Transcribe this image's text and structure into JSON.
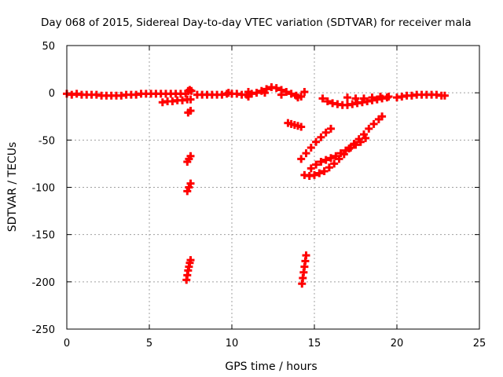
{
  "chart_data": {
    "type": "scatter",
    "title": "Day 068 of 2015, Sidereal Day-to-day VTEC variation (SDTVAR) for receiver mala",
    "xlabel": "GPS time / hours",
    "ylabel": "SDTVAR / TECUs",
    "xlim": [
      0,
      25
    ],
    "ylim": [
      -250,
      50
    ],
    "x_ticks": [
      0,
      5,
      10,
      15,
      20,
      25
    ],
    "y_ticks": [
      50,
      0,
      -50,
      -100,
      -150,
      -200,
      -250
    ],
    "grid": true,
    "marker": "plus",
    "color": "#ff0000",
    "series": [
      {
        "values": [
          {
            "x": 0.0,
            "y": -1
          },
          {
            "x": 0.3,
            "y": -2
          },
          {
            "x": 0.6,
            "y": -1
          },
          {
            "x": 0.9,
            "y": -2
          },
          {
            "x": 1.2,
            "y": -2
          },
          {
            "x": 1.5,
            "y": -2
          },
          {
            "x": 1.8,
            "y": -2
          },
          {
            "x": 2.1,
            "y": -3
          },
          {
            "x": 2.4,
            "y": -3
          },
          {
            "x": 2.7,
            "y": -3
          },
          {
            "x": 3.0,
            "y": -3
          },
          {
            "x": 3.3,
            "y": -3
          },
          {
            "x": 3.6,
            "y": -2
          },
          {
            "x": 3.9,
            "y": -2
          },
          {
            "x": 4.2,
            "y": -2
          },
          {
            "x": 4.5,
            "y": -1
          },
          {
            "x": 4.8,
            "y": -1
          },
          {
            "x": 5.1,
            "y": -1
          },
          {
            "x": 5.4,
            "y": -1
          },
          {
            "x": 5.7,
            "y": -1
          },
          {
            "x": 6.0,
            "y": -1
          },
          {
            "x": 6.3,
            "y": -1
          },
          {
            "x": 6.6,
            "y": -1
          },
          {
            "x": 6.9,
            "y": -1
          },
          {
            "x": 7.2,
            "y": -1
          },
          {
            "x": 5.8,
            "y": -10
          },
          {
            "x": 6.1,
            "y": -9
          },
          {
            "x": 6.4,
            "y": -9
          },
          {
            "x": 6.7,
            "y": -8
          },
          {
            "x": 7.0,
            "y": -8
          },
          {
            "x": 7.3,
            "y": -7
          },
          {
            "x": 7.5,
            "y": -7
          },
          {
            "x": 7.35,
            "y": 2
          },
          {
            "x": 7.45,
            "y": 3
          },
          {
            "x": 7.55,
            "y": 2
          },
          {
            "x": 7.35,
            "y": -21
          },
          {
            "x": 7.5,
            "y": -19
          },
          {
            "x": 7.3,
            "y": -73
          },
          {
            "x": 7.4,
            "y": -70
          },
          {
            "x": 7.5,
            "y": -67
          },
          {
            "x": 7.3,
            "y": -104
          },
          {
            "x": 7.4,
            "y": -100
          },
          {
            "x": 7.5,
            "y": -96
          },
          {
            "x": 7.25,
            "y": -198
          },
          {
            "x": 7.3,
            "y": -193
          },
          {
            "x": 7.35,
            "y": -188
          },
          {
            "x": 7.4,
            "y": -184
          },
          {
            "x": 7.45,
            "y": -180
          },
          {
            "x": 7.5,
            "y": -177
          },
          {
            "x": 7.9,
            "y": -2
          },
          {
            "x": 8.2,
            "y": -2
          },
          {
            "x": 8.5,
            "y": -2
          },
          {
            "x": 8.8,
            "y": -2
          },
          {
            "x": 9.1,
            "y": -2
          },
          {
            "x": 9.4,
            "y": -2
          },
          {
            "x": 9.7,
            "y": -1
          },
          {
            "x": 10.0,
            "y": -1
          },
          {
            "x": 10.3,
            "y": -1
          },
          {
            "x": 10.6,
            "y": -2
          },
          {
            "x": 10.9,
            "y": -2
          },
          {
            "x": 11.2,
            "y": -1
          },
          {
            "x": 11.5,
            "y": 0
          },
          {
            "x": 11.8,
            "y": 2
          },
          {
            "x": 12.1,
            "y": 4
          },
          {
            "x": 12.4,
            "y": 6
          },
          {
            "x": 12.7,
            "y": 5
          },
          {
            "x": 13.0,
            "y": 3
          },
          {
            "x": 13.3,
            "y": 1
          },
          {
            "x": 13.6,
            "y": -1
          },
          {
            "x": 13.9,
            "y": -3
          },
          {
            "x": 14.2,
            "y": -4
          },
          {
            "x": 14.4,
            "y": 1
          },
          {
            "x": 9.8,
            "y": 0
          },
          {
            "x": 11.0,
            "y": 1
          },
          {
            "x": 11.0,
            "y": -4
          },
          {
            "x": 12.0,
            "y": 0
          },
          {
            "x": 13.0,
            "y": -2
          },
          {
            "x": 14.0,
            "y": -5
          },
          {
            "x": 13.4,
            "y": -32
          },
          {
            "x": 13.6,
            "y": -33
          },
          {
            "x": 13.8,
            "y": -34
          },
          {
            "x": 14.0,
            "y": -35
          },
          {
            "x": 14.2,
            "y": -36
          },
          {
            "x": 14.25,
            "y": -202
          },
          {
            "x": 14.3,
            "y": -196
          },
          {
            "x": 14.35,
            "y": -190
          },
          {
            "x": 14.4,
            "y": -184
          },
          {
            "x": 14.45,
            "y": -178
          },
          {
            "x": 14.5,
            "y": -172
          },
          {
            "x": 14.2,
            "y": -70
          },
          {
            "x": 14.5,
            "y": -64
          },
          {
            "x": 14.8,
            "y": -58
          },
          {
            "x": 15.1,
            "y": -52
          },
          {
            "x": 15.4,
            "y": -47
          },
          {
            "x": 15.7,
            "y": -42
          },
          {
            "x": 16.0,
            "y": -38
          },
          {
            "x": 14.4,
            "y": -87
          },
          {
            "x": 14.7,
            "y": -88
          },
          {
            "x": 15.0,
            "y": -87
          },
          {
            "x": 15.3,
            "y": -85
          },
          {
            "x": 15.6,
            "y": -83
          },
          {
            "x": 15.9,
            "y": -79
          },
          {
            "x": 16.2,
            "y": -75
          },
          {
            "x": 16.5,
            "y": -70
          },
          {
            "x": 16.8,
            "y": -65
          },
          {
            "x": 17.1,
            "y": -59
          },
          {
            "x": 17.4,
            "y": -54
          },
          {
            "x": 17.7,
            "y": -49
          },
          {
            "x": 18.0,
            "y": -44
          },
          {
            "x": 18.3,
            "y": -38
          },
          {
            "x": 18.6,
            "y": -33
          },
          {
            "x": 18.9,
            "y": -28
          },
          {
            "x": 19.1,
            "y": -25
          },
          {
            "x": 14.8,
            "y": -80
          },
          {
            "x": 15.1,
            "y": -76
          },
          {
            "x": 15.4,
            "y": -73
          },
          {
            "x": 15.7,
            "y": -71
          },
          {
            "x": 16.0,
            "y": -69
          },
          {
            "x": 16.3,
            "y": -67
          },
          {
            "x": 16.6,
            "y": -64
          },
          {
            "x": 16.9,
            "y": -61
          },
          {
            "x": 17.2,
            "y": -58
          },
          {
            "x": 17.5,
            "y": -55
          },
          {
            "x": 17.8,
            "y": -52
          },
          {
            "x": 18.1,
            "y": -48
          },
          {
            "x": 15.5,
            "y": -6
          },
          {
            "x": 15.8,
            "y": -9
          },
          {
            "x": 16.1,
            "y": -11
          },
          {
            "x": 16.4,
            "y": -12
          },
          {
            "x": 16.7,
            "y": -13
          },
          {
            "x": 17.0,
            "y": -13
          },
          {
            "x": 17.3,
            "y": -12
          },
          {
            "x": 17.6,
            "y": -11
          },
          {
            "x": 17.9,
            "y": -10
          },
          {
            "x": 18.2,
            "y": -9
          },
          {
            "x": 18.5,
            "y": -8
          },
          {
            "x": 18.8,
            "y": -7
          },
          {
            "x": 19.1,
            "y": -6
          },
          {
            "x": 19.4,
            "y": -5
          },
          {
            "x": 17.0,
            "y": -5
          },
          {
            "x": 17.5,
            "y": -6
          },
          {
            "x": 18.0,
            "y": -6
          },
          {
            "x": 18.5,
            "y": -5
          },
          {
            "x": 19.0,
            "y": -4
          },
          {
            "x": 19.5,
            "y": -4
          },
          {
            "x": 20.0,
            "y": -5
          },
          {
            "x": 20.3,
            "y": -4
          },
          {
            "x": 20.6,
            "y": -3
          },
          {
            "x": 20.9,
            "y": -3
          },
          {
            "x": 21.2,
            "y": -2
          },
          {
            "x": 21.5,
            "y": -2
          },
          {
            "x": 21.8,
            "y": -2
          },
          {
            "x": 22.1,
            "y": -2
          },
          {
            "x": 22.4,
            "y": -2
          },
          {
            "x": 22.7,
            "y": -3
          },
          {
            "x": 22.9,
            "y": -3
          }
        ]
      }
    ]
  }
}
